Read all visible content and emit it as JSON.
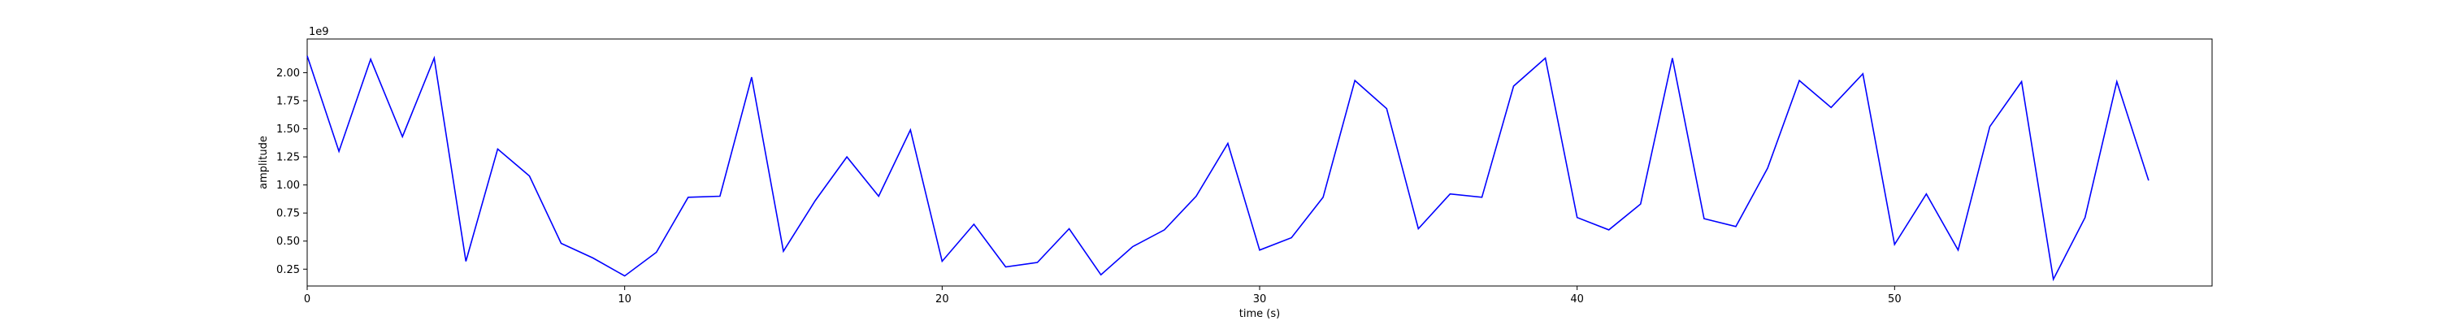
{
  "chart_data": {
    "type": "line",
    "title": "",
    "xlabel": "time (s)",
    "ylabel": "amplitude",
    "y_offset_label": "1e9",
    "xlim": [
      0,
      60
    ],
    "ylim": [
      0.1,
      2.3
    ],
    "y_scale_factor": 1000000000,
    "grid": false,
    "legend": "none",
    "x_ticks": [
      0,
      10,
      20,
      30,
      40,
      50
    ],
    "y_ticks": [
      0.25,
      0.5,
      0.75,
      1.0,
      1.25,
      1.5,
      1.75,
      2.0
    ],
    "series": [
      {
        "color": "#0000ff",
        "x": [
          0,
          1,
          2,
          3,
          4,
          5,
          6,
          7,
          8,
          9,
          10,
          11,
          12,
          13,
          14,
          15,
          16,
          17,
          18,
          19,
          20,
          21,
          22,
          23,
          24,
          25,
          26,
          27,
          28,
          29,
          30,
          31,
          32,
          33,
          34,
          35,
          36,
          37,
          38,
          39,
          40,
          41,
          42,
          43,
          44,
          45,
          46,
          47,
          48,
          49,
          50,
          51,
          52,
          53,
          54,
          55,
          56,
          57,
          58
        ],
        "values": [
          2.15,
          1.3,
          2.12,
          1.43,
          2.13,
          0.32,
          1.32,
          1.08,
          0.48,
          0.35,
          0.19,
          0.4,
          0.89,
          0.9,
          1.96,
          0.41,
          0.86,
          1.25,
          0.9,
          1.49,
          0.32,
          0.65,
          0.27,
          0.31,
          0.61,
          0.2,
          0.45,
          0.6,
          0.9,
          1.37,
          0.42,
          0.53,
          0.89,
          1.93,
          1.68,
          0.61,
          0.92,
          0.89,
          1.88,
          2.13,
          0.71,
          0.6,
          0.83,
          2.13,
          0.7,
          0.63,
          1.15,
          1.93,
          1.69,
          1.99,
          0.47,
          0.92,
          0.42,
          1.52,
          1.92,
          0.16,
          0.71,
          1.92,
          1.04
        ]
      }
    ]
  }
}
